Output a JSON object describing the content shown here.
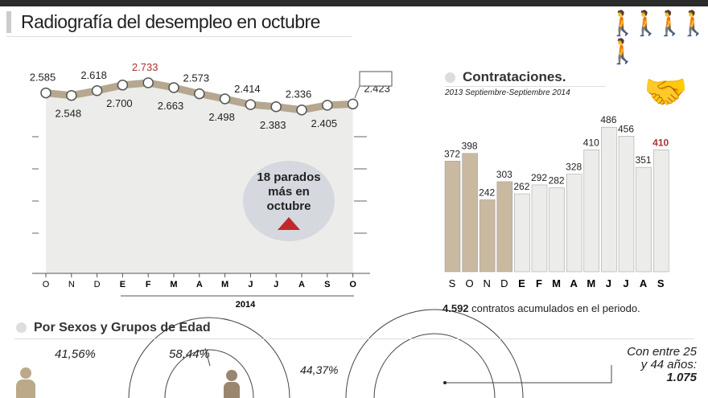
{
  "title": "Radiografía del desempleo en octubre",
  "badge": {
    "line1": "18 parados",
    "line2": "más en",
    "line3": "octubre"
  },
  "contrataciones": {
    "heading": "Contrataciones.",
    "subtitle": "2013 Septiembre-Septiembre 2014",
    "footer_value": "4.592",
    "footer_text": " contratos acumulados en el periodo."
  },
  "section2": {
    "heading": "Por  Sexos y Grupos de Edad",
    "men_pct": "41,56%",
    "women_pct": "58,44%",
    "age_pct": "44,37%",
    "age_note1": "Con entre 25",
    "age_note2": "y 44 años:",
    "age_value": "1.075"
  },
  "chart_data": [
    {
      "type": "line",
      "title": "Radiografía del desempleo en octubre",
      "categories": [
        "O",
        "N",
        "D",
        "E",
        "F",
        "M",
        "A",
        "M",
        "J",
        "J",
        "A",
        "S",
        "O"
      ],
      "bold_from": 3,
      "year_label": "2014",
      "values": [
        2585,
        2548,
        2618,
        2700,
        2733,
        2663,
        2573,
        2498,
        2414,
        2383,
        2336,
        2405,
        2423
      ],
      "labels": [
        "2.585",
        "2.548",
        "2.618",
        "2.700",
        "2.733",
        "2.663",
        "2.573",
        "2.498",
        "2.414",
        "2.383",
        "2.336",
        "2.405",
        "2.423"
      ],
      "highlight_index": 4,
      "highlight_color": "#b03030",
      "line_color": "#b5a790"
    },
    {
      "type": "bar",
      "title": "Contrataciones.",
      "categories": [
        "S",
        "O",
        "N",
        "D",
        "E",
        "F",
        "M",
        "A",
        "M",
        "J",
        "J",
        "A",
        "S"
      ],
      "values": [
        372,
        398,
        242,
        303,
        262,
        292,
        282,
        328,
        410,
        486,
        456,
        351,
        410
      ],
      "colors_2013": "#c8b9a0",
      "colors_2014": "#ececea",
      "highlight_index": 12,
      "highlight_color": "#b03030"
    }
  ]
}
